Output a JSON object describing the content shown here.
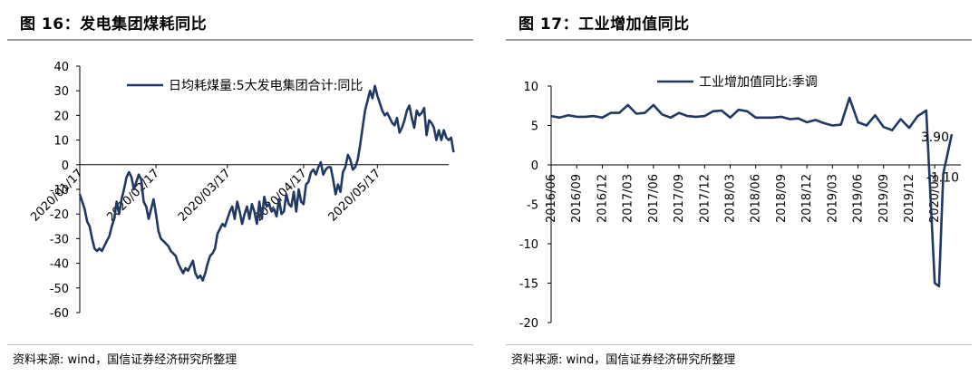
{
  "left": {
    "title": "图 16：发电集团煤耗同比",
    "source": "资料来源: wind，国信证券经济研究所整理",
    "chart_data": {
      "type": "line",
      "title": "",
      "legend": "日均耗煤量:5大发电集团合计:同比",
      "legend_position": "top-center",
      "ylim": [
        -60,
        40
      ],
      "yticks": [
        40,
        30,
        20,
        10,
        0,
        -10,
        -20,
        -30,
        -40,
        -50,
        -60
      ],
      "xticks": [
        {
          "label": "2020/01/17",
          "day": 0
        },
        {
          "label": "2020/02/17",
          "day": 31
        },
        {
          "label": "2020/03/17",
          "day": 60
        },
        {
          "label": "2020/04/17",
          "day": 91
        },
        {
          "label": "2020/05/17",
          "day": 121
        }
      ],
      "x_range": [
        0,
        150
      ],
      "color": "#1f3864",
      "series": [
        {
          "values": [
            [
              0,
              -12
            ],
            [
              2,
              -18
            ],
            [
              3,
              -23
            ],
            [
              4,
              -25
            ],
            [
              5,
              -30
            ],
            [
              6,
              -34
            ],
            [
              7,
              -35
            ],
            [
              8,
              -34
            ],
            [
              9,
              -35
            ],
            [
              10,
              -33
            ],
            [
              11,
              -31
            ],
            [
              12,
              -29
            ],
            [
              13,
              -25
            ],
            [
              14,
              -22
            ],
            [
              15,
              -15
            ],
            [
              16,
              -20
            ],
            [
              17,
              -14
            ],
            [
              18,
              -10
            ],
            [
              19,
              -5
            ],
            [
              20,
              -3
            ],
            [
              21,
              -5
            ],
            [
              22,
              -10
            ],
            [
              23,
              -7
            ],
            [
              24,
              -4
            ],
            [
              25,
              -6
            ],
            [
              26,
              -15
            ],
            [
              27,
              -17
            ],
            [
              28,
              -22
            ],
            [
              29,
              -18
            ],
            [
              30,
              -14
            ],
            [
              31,
              -20
            ],
            [
              32,
              -27
            ],
            [
              33,
              -30
            ],
            [
              34,
              -31
            ],
            [
              35,
              -32
            ],
            [
              36,
              -33
            ],
            [
              37,
              -35
            ],
            [
              38,
              -36
            ],
            [
              39,
              -37
            ],
            [
              40,
              -40
            ],
            [
              41,
              -42
            ],
            [
              42,
              -44
            ],
            [
              43,
              -42
            ],
            [
              44,
              -43
            ],
            [
              45,
              -41
            ],
            [
              46,
              -39
            ],
            [
              47,
              -44
            ],
            [
              48,
              -46
            ],
            [
              49,
              -45
            ],
            [
              50,
              -47
            ],
            [
              51,
              -44
            ],
            [
              52,
              -40
            ],
            [
              53,
              -37
            ],
            [
              54,
              -36
            ],
            [
              55,
              -34
            ],
            [
              56,
              -28
            ],
            [
              57,
              -26
            ],
            [
              58,
              -24
            ],
            [
              59,
              -25
            ],
            [
              60,
              -22
            ],
            [
              61,
              -19
            ],
            [
              62,
              -17
            ],
            [
              63,
              -22
            ],
            [
              64,
              -15
            ],
            [
              65,
              -19
            ],
            [
              66,
              -24
            ],
            [
              67,
              -20
            ],
            [
              68,
              -17
            ],
            [
              69,
              -22
            ],
            [
              70,
              -16
            ],
            [
              71,
              -19
            ],
            [
              72,
              -24
            ],
            [
              73,
              -15
            ],
            [
              74,
              -22
            ],
            [
              75,
              -13
            ],
            [
              76,
              -17
            ],
            [
              77,
              -16
            ],
            [
              78,
              -19
            ],
            [
              79,
              -18
            ],
            [
              80,
              -21
            ],
            [
              81,
              -14
            ],
            [
              82,
              -20
            ],
            [
              83,
              -19
            ],
            [
              84,
              -12
            ],
            [
              85,
              -16
            ],
            [
              86,
              -17
            ],
            [
              87,
              -11
            ],
            [
              88,
              -19
            ],
            [
              89,
              -10
            ],
            [
              90,
              -15
            ],
            [
              91,
              -16
            ],
            [
              92,
              -8
            ],
            [
              93,
              -7
            ],
            [
              94,
              -3
            ],
            [
              95,
              -2
            ],
            [
              96,
              -4
            ],
            [
              97,
              -1
            ],
            [
              98,
              1
            ],
            [
              99,
              -4
            ],
            [
              100,
              -2
            ],
            [
              101,
              -1
            ],
            [
              102,
              -1
            ],
            [
              103,
              -6
            ],
            [
              104,
              -12
            ],
            [
              105,
              -8
            ],
            [
              106,
              -11
            ],
            [
              107,
              -3
            ],
            [
              108,
              -1
            ],
            [
              109,
              4
            ],
            [
              110,
              2
            ],
            [
              111,
              -2
            ],
            [
              112,
              -1
            ],
            [
              113,
              2
            ],
            [
              114,
              8
            ],
            [
              115,
              15
            ],
            [
              116,
              22
            ],
            [
              117,
              26
            ],
            [
              118,
              30
            ],
            [
              119,
              27
            ],
            [
              120,
              32
            ],
            [
              121,
              28
            ],
            [
              122,
              25
            ],
            [
              123,
              22
            ],
            [
              124,
              20
            ],
            [
              125,
              21
            ],
            [
              126,
              19
            ],
            [
              127,
              17
            ],
            [
              128,
              16
            ],
            [
              129,
              19
            ],
            [
              130,
              13
            ],
            [
              131,
              15
            ],
            [
              132,
              18
            ],
            [
              133,
              22
            ],
            [
              134,
              24
            ],
            [
              135,
              19
            ],
            [
              136,
              15
            ],
            [
              137,
              22
            ],
            [
              138,
              20
            ],
            [
              139,
              21
            ],
            [
              140,
              23
            ],
            [
              141,
              12
            ],
            [
              142,
              18
            ],
            [
              143,
              17
            ],
            [
              144,
              15
            ],
            [
              145,
              10
            ],
            [
              146,
              14
            ],
            [
              147,
              10
            ],
            [
              148,
              14
            ],
            [
              149,
              11
            ],
            [
              150,
              10
            ],
            [
              151,
              11
            ],
            [
              152,
              5
            ]
          ]
        }
      ]
    }
  },
  "right": {
    "title": "图 17：工业增加值同比",
    "source": "资料来源: wind，国信证券经济研究所整理",
    "chart_data": {
      "type": "line",
      "title": "",
      "legend": "工业增加值同比:季调",
      "legend_position": "top-center",
      "ylim": [
        -20,
        10
      ],
      "yticks": [
        10,
        5,
        0,
        -5,
        -10,
        -15,
        -20
      ],
      "xticks": [
        "2016/06",
        "2016/09",
        "2016/12",
        "2017/03",
        "2017/06",
        "2017/09",
        "2017/12",
        "2018/03",
        "2018/06",
        "2018/09",
        "2018/12",
        "2019/03",
        "2019/06",
        "2019/09",
        "2019/12",
        "2020/03"
      ],
      "x_index_range": [
        0,
        47
      ],
      "annotations": [
        {
          "text": "3.90",
          "month": 47,
          "value": 3.9
        },
        {
          "text": "-1.10",
          "month": 45.5,
          "value": -1.1
        }
      ],
      "color": "#1f3864",
      "series": [
        {
          "values": [
            [
              0,
              6.2
            ],
            [
              1,
              6.0
            ],
            [
              2,
              6.3
            ],
            [
              3,
              6.1
            ],
            [
              4,
              6.1
            ],
            [
              5,
              6.2
            ],
            [
              6,
              6.0
            ],
            [
              7,
              6.6
            ],
            [
              8,
              6.6
            ],
            [
              9,
              7.6
            ],
            [
              10,
              6.5
            ],
            [
              11,
              6.6
            ],
            [
              12,
              7.6
            ],
            [
              13,
              6.4
            ],
            [
              14,
              6.0
            ],
            [
              15,
              6.6
            ],
            [
              16,
              6.2
            ],
            [
              17,
              6.1
            ],
            [
              18,
              6.2
            ],
            [
              19,
              6.8
            ],
            [
              20,
              6.9
            ],
            [
              21,
              6.0
            ],
            [
              22,
              7.0
            ],
            [
              23,
              6.8
            ],
            [
              24,
              6.0
            ],
            [
              25,
              6.0
            ],
            [
              26,
              6.0
            ],
            [
              27,
              6.1
            ],
            [
              28,
              5.8
            ],
            [
              29,
              5.9
            ],
            [
              30,
              5.4
            ],
            [
              31,
              5.7
            ],
            [
              32,
              5.3
            ],
            [
              33,
              5.0
            ],
            [
              34,
              5.1
            ],
            [
              35,
              8.5
            ],
            [
              36,
              5.4
            ],
            [
              37,
              5.0
            ],
            [
              38,
              6.3
            ],
            [
              39,
              4.8
            ],
            [
              40,
              4.4
            ],
            [
              41,
              5.8
            ],
            [
              42,
              4.7
            ],
            [
              43,
              6.2
            ],
            [
              44,
              6.9
            ],
            [
              45,
              -15.0
            ],
            [
              45.5,
              -15.4
            ],
            [
              46,
              -1.1
            ],
            [
              47,
              3.9
            ]
          ]
        }
      ]
    }
  }
}
